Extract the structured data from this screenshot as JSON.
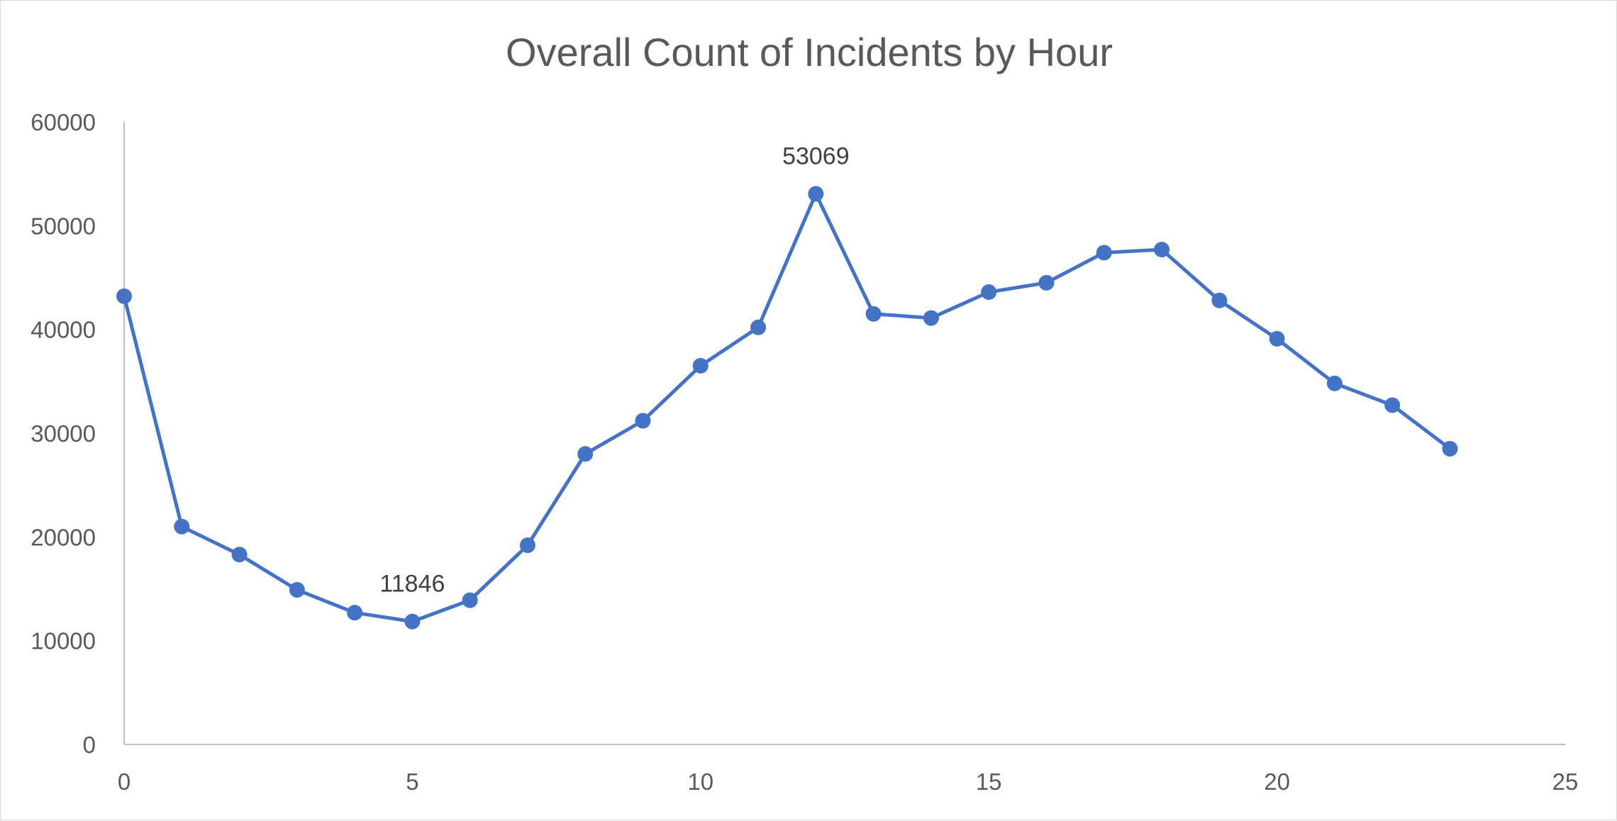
{
  "chart_data": {
    "type": "scatter",
    "title": "Overall Count of Incidents by Hour",
    "xlabel": "",
    "ylabel": "",
    "xlim": [
      0,
      25
    ],
    "ylim": [
      0,
      60000
    ],
    "x_ticks": [
      0,
      5,
      10,
      15,
      20,
      25
    ],
    "y_ticks": [
      0,
      10000,
      20000,
      30000,
      40000,
      50000,
      60000
    ],
    "grid": false,
    "legend": "none",
    "series": [
      {
        "color": "#4472c4",
        "markers": true,
        "lines": true,
        "x": [
          0,
          1,
          2,
          3,
          4,
          5,
          6,
          7,
          8,
          9,
          10,
          11,
          12,
          13,
          14,
          15,
          16,
          17,
          18,
          19,
          20,
          21,
          22,
          23
        ],
        "y": [
          43200,
          21000,
          18300,
          14900,
          12700,
          11846,
          13900,
          19200,
          28000,
          31200,
          36500,
          40200,
          53069,
          41500,
          41100,
          43600,
          44500,
          47400,
          47700,
          42800,
          39100,
          34800,
          32700,
          28500
        ]
      }
    ],
    "annotations": [
      {
        "x": 5,
        "y": 11846,
        "text": "11846"
      },
      {
        "x": 12,
        "y": 53069,
        "text": "53069"
      }
    ]
  }
}
